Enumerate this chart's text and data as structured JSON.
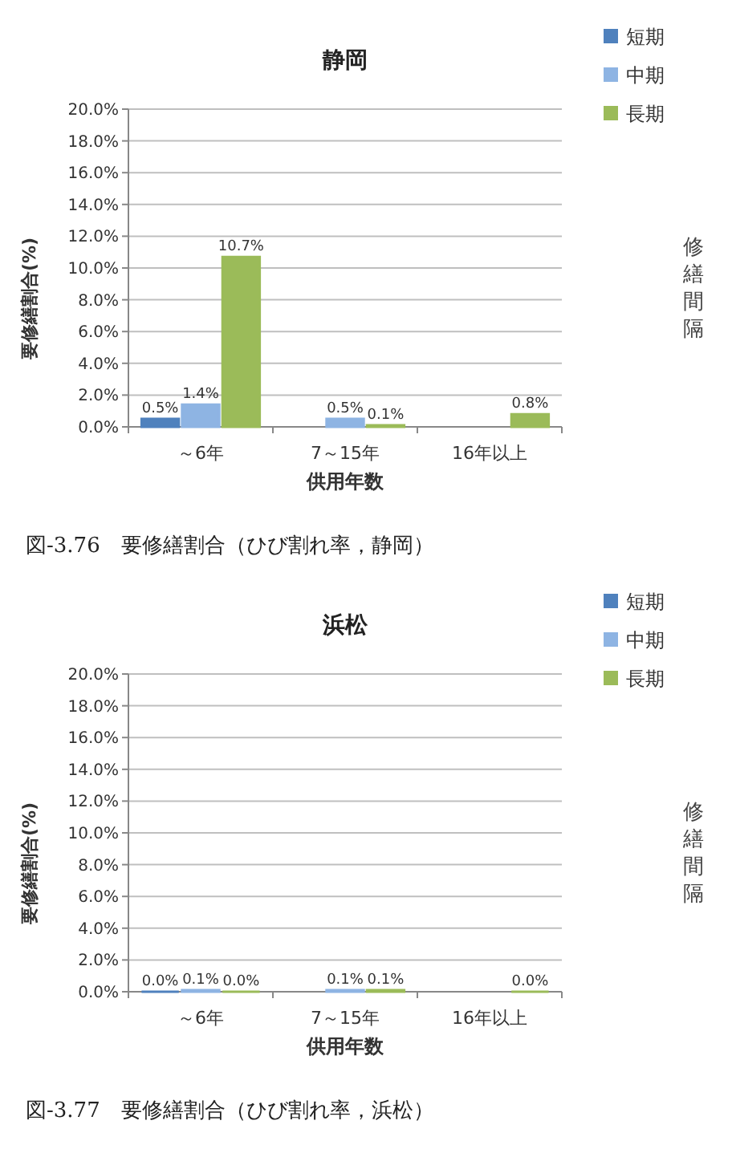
{
  "chart_data": [
    {
      "type": "bar",
      "title": "静岡",
      "xlabel": "供用年数",
      "ylabel": "要修繕割合(%)",
      "categories": [
        "～6年",
        "7～15年",
        "16年以上"
      ],
      "series": [
        {
          "name": "短期",
          "color": "#4f81bd",
          "values": [
            0.5,
            null,
            null
          ],
          "value_labels": [
            "0.5%",
            null,
            null
          ]
        },
        {
          "name": "中期",
          "color": "#8eb4e3",
          "values": [
            1.4,
            0.5,
            null
          ],
          "value_labels": [
            "1.4%",
            "0.5%",
            null
          ]
        },
        {
          "name": "長期",
          "color": "#9bbb59",
          "values": [
            10.7,
            0.1,
            0.8
          ],
          "value_labels": [
            "10.7%",
            "0.1%",
            "0.8%"
          ]
        }
      ],
      "ylim": [
        0,
        20
      ],
      "yticks": [
        {
          "value": 0,
          "label": "0.0%"
        },
        {
          "value": 2,
          "label": "2.0%"
        },
        {
          "value": 4,
          "label": "4.0%"
        },
        {
          "value": 6,
          "label": "6.0%"
        },
        {
          "value": 8,
          "label": "8.0%"
        },
        {
          "value": 10,
          "label": "10.0%"
        },
        {
          "value": 12,
          "label": "12.0%"
        },
        {
          "value": 14,
          "label": "14.0%"
        },
        {
          "value": 16,
          "label": "16.0%"
        },
        {
          "value": 18,
          "label": "18.0%"
        },
        {
          "value": 20,
          "label": "20.0%"
        }
      ],
      "grid": true,
      "legend": "top right",
      "annotations": [
        "修繕間隔",
        "図-3.76　要修繕割合（ひび割れ率，静岡）"
      ]
    },
    {
      "type": "bar",
      "title": "浜松",
      "xlabel": "供用年数",
      "ylabel": "要修繕割合(%)",
      "categories": [
        "～6年",
        "7～15年",
        "16年以上"
      ],
      "series": [
        {
          "name": "短期",
          "color": "#4f81bd",
          "values": [
            0.0,
            null,
            null
          ],
          "value_labels": [
            "0.0%",
            null,
            null
          ]
        },
        {
          "name": "中期",
          "color": "#8eb4e3",
          "values": [
            0.1,
            0.1,
            null
          ],
          "value_labels": [
            "0.1%",
            "0.1%",
            null
          ]
        },
        {
          "name": "長期",
          "color": "#9bbb59",
          "values": [
            0.0,
            0.1,
            0.0
          ],
          "value_labels": [
            "0.0%",
            "0.1%",
            "0.0%"
          ]
        }
      ],
      "ylim": [
        0,
        20
      ],
      "yticks": [
        {
          "value": 0,
          "label": "0.0%"
        },
        {
          "value": 2,
          "label": "2.0%"
        },
        {
          "value": 4,
          "label": "4.0%"
        },
        {
          "value": 6,
          "label": "6.0%"
        },
        {
          "value": 8,
          "label": "8.0%"
        },
        {
          "value": 10,
          "label": "10.0%"
        },
        {
          "value": 12,
          "label": "12.0%"
        },
        {
          "value": 14,
          "label": "14.0%"
        },
        {
          "value": 16,
          "label": "16.0%"
        },
        {
          "value": 18,
          "label": "18.0%"
        },
        {
          "value": 20,
          "label": "20.0%"
        }
      ],
      "grid": true,
      "legend": "top right",
      "annotations": [
        "修繕間隔",
        "図-3.77　要修繕割合（ひび割れ率，浜松）"
      ]
    }
  ]
}
